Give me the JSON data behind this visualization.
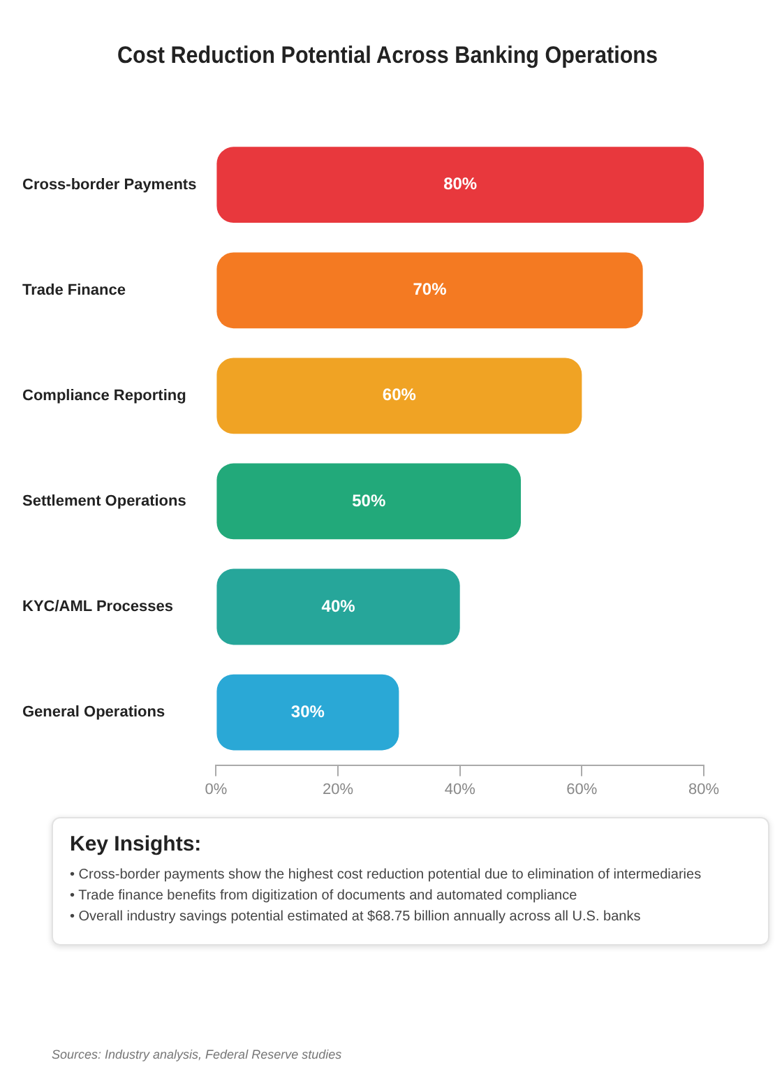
{
  "chart_data": {
    "type": "bar",
    "orientation": "horizontal",
    "title": "Cost Reduction Potential Across Banking Operations",
    "categories": [
      "Cross-border Payments",
      "Trade Finance",
      "Compliance Reporting",
      "Settlement Operations",
      "KYC/AML Processes",
      "General Operations"
    ],
    "values": [
      80,
      70,
      60,
      50,
      40,
      30
    ],
    "colors": [
      "#e8383d",
      "#f47a22",
      "#f0a324",
      "#22a97a",
      "#26a69a",
      "#2aa8d6"
    ],
    "value_labels": [
      "80%",
      "70%",
      "60%",
      "50%",
      "40%",
      "30%"
    ],
    "xlim": [
      0,
      80
    ],
    "xticks": [
      {
        "value": 0,
        "label": "0%"
      },
      {
        "value": 20,
        "label": "20%"
      },
      {
        "value": 40,
        "label": "40%"
      },
      {
        "value": 60,
        "label": "60%"
      },
      {
        "value": 80,
        "label": "80%"
      }
    ],
    "grid": false,
    "legend": false,
    "annotations": [
      "Key Insights:",
      "• Cross-border payments show the highest cost reduction potential due to elimination of intermediaries",
      "• Trade finance benefits from digitization of documents and automated compliance",
      "• Overall industry savings potential estimated at $68.75 billion annually across all U.S. banks",
      "Sources: Industry analysis, Federal Reserve studies"
    ]
  }
}
